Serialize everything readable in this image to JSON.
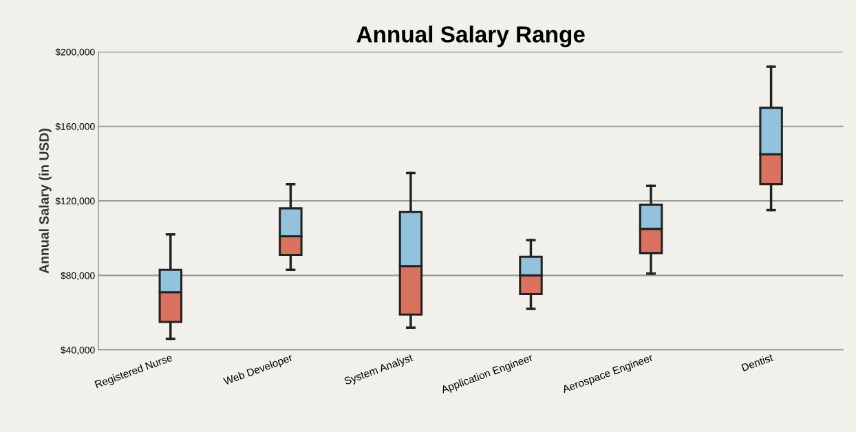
{
  "chart_data": {
    "type": "box",
    "title": "Annual Salary Range",
    "ylabel": "Annual Salary (in USD)",
    "categories": [
      "Registered Nurse",
      "Web Developer",
      "System Analyst",
      "Application Engineer",
      "Aerospace Engineer",
      "Dentist"
    ],
    "boxes": [
      {
        "low": 46000,
        "q1": 55000,
        "median": 71000,
        "q3": 83000,
        "high": 102000
      },
      {
        "low": 83000,
        "q1": 91000,
        "median": 101000,
        "q3": 116000,
        "high": 129000
      },
      {
        "low": 52000,
        "q1": 59000,
        "median": 85000,
        "q3": 114000,
        "high": 135000
      },
      {
        "low": 62000,
        "q1": 70000,
        "median": 80000,
        "q3": 90000,
        "high": 99000
      },
      {
        "low": 81000,
        "q1": 92000,
        "median": 105000,
        "q3": 118000,
        "high": 128000
      },
      {
        "low": 115000,
        "q1": 129000,
        "median": 145000,
        "q3": 170000,
        "high": 192000
      }
    ],
    "colors": [
      [
        "#d9735f",
        "#93c2dd"
      ],
      [
        "#d9735f",
        "#93c2dd"
      ],
      [
        "#d9735f",
        "#93c2dd"
      ],
      [
        "#d9735f",
        "#93c2dd"
      ],
      [
        "#d9735f",
        "#93c2dd"
      ],
      [
        "#d9735f",
        "#93c2dd"
      ]
    ],
    "ylim": [
      40000,
      200000
    ],
    "yticks": [
      {
        "value": 40000,
        "label": "$40,000"
      },
      {
        "value": 80000,
        "label": "$80,000"
      },
      {
        "value": 120000,
        "label": "$120,000"
      },
      {
        "value": 160000,
        "label": "$160,000"
      },
      {
        "value": 200000,
        "label": "$200,000"
      }
    ],
    "grid": "y",
    "legend": false
  }
}
